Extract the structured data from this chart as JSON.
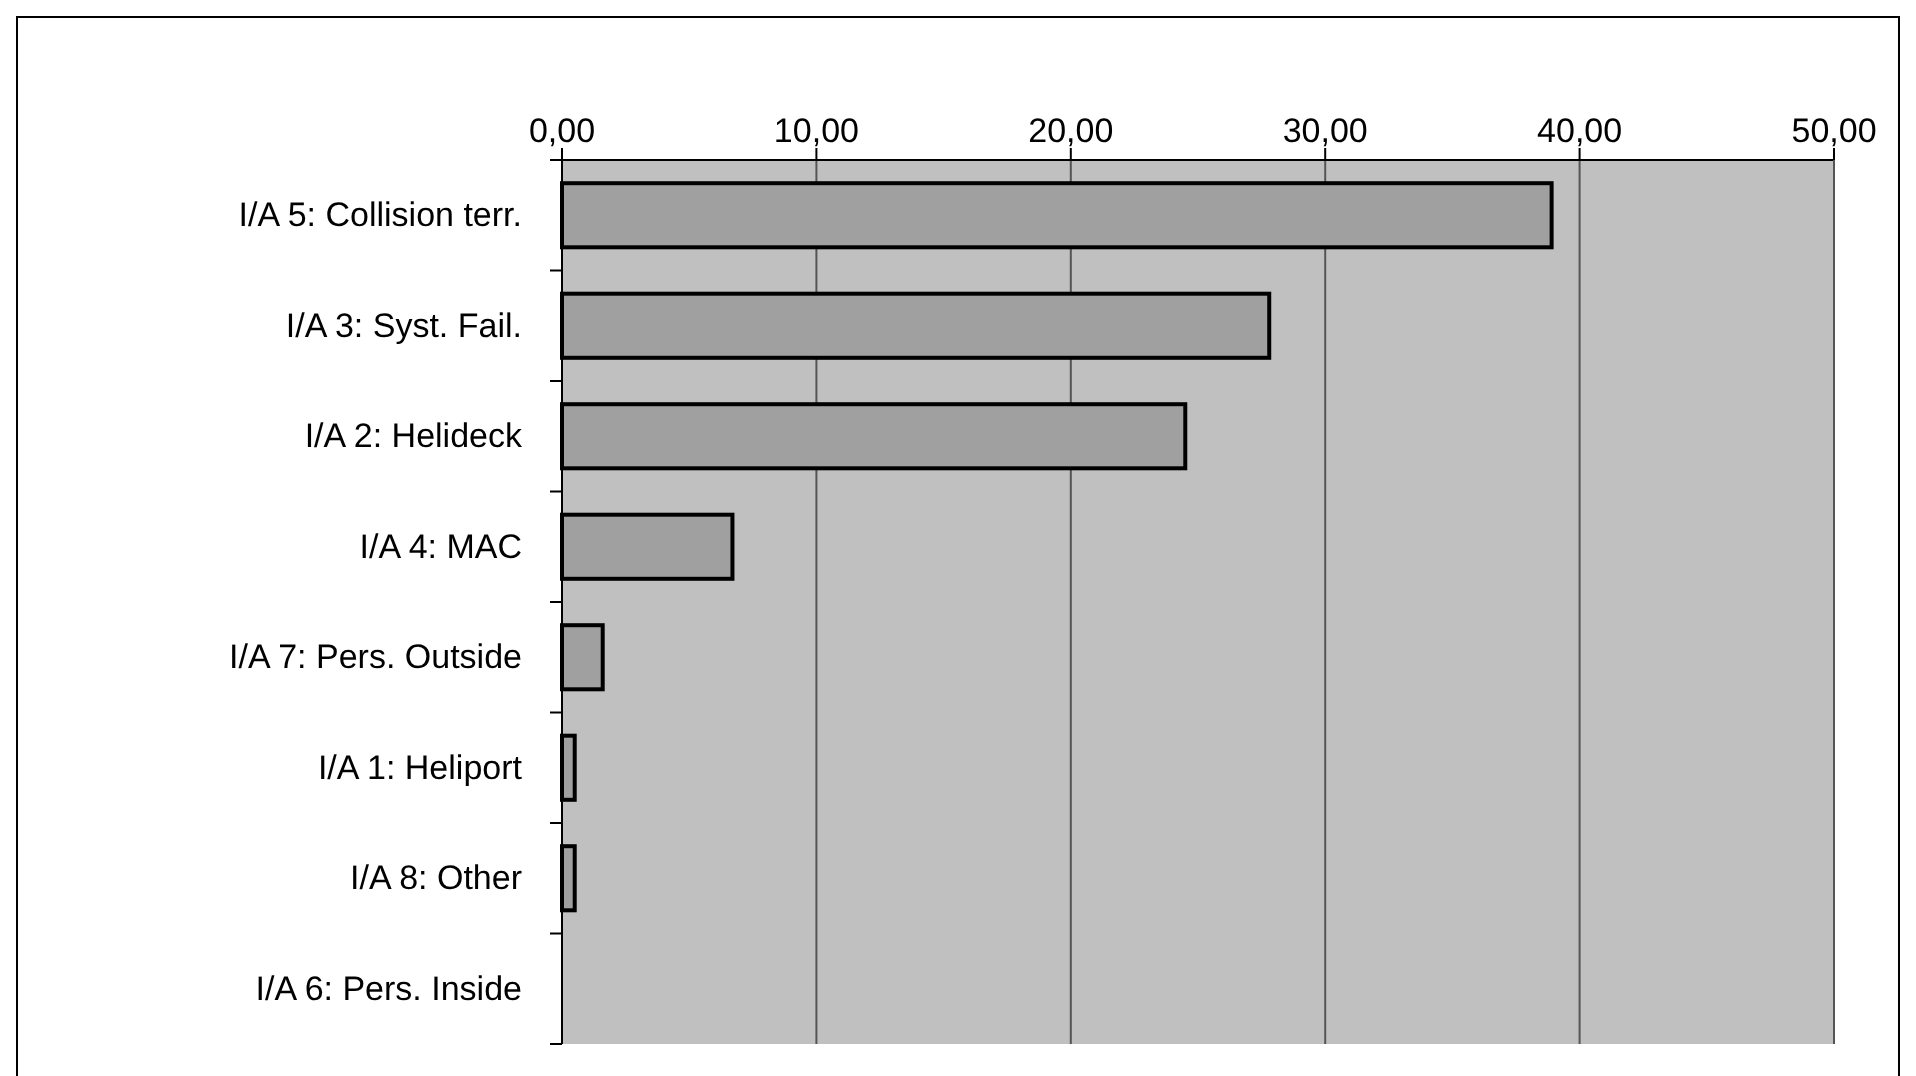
{
  "chart_data": {
    "type": "bar",
    "orientation": "horizontal",
    "categories": [
      "I/A 5: Collision terr.",
      "I/A 3: Syst. Fail.",
      "I/A 2: Helideck",
      "I/A 4: MAC",
      "I/A 7: Pers. Outside",
      "I/A 1: Heliport",
      "I/A 8: Other",
      "I/A 6: Pers. Inside"
    ],
    "values": [
      38.9,
      27.8,
      24.5,
      6.7,
      1.6,
      0.5,
      0.5,
      0
    ],
    "color": "#a0a0a0",
    "xlim": [
      0,
      50
    ],
    "xticks": [
      {
        "value": 0,
        "label": "0,00"
      },
      {
        "value": 10,
        "label": "10,00"
      },
      {
        "value": 20,
        "label": "20,00"
      },
      {
        "value": 30,
        "label": "30,00"
      },
      {
        "value": 40,
        "label": "40,00"
      },
      {
        "value": 50,
        "label": "50,00"
      }
    ],
    "grid": "x"
  }
}
